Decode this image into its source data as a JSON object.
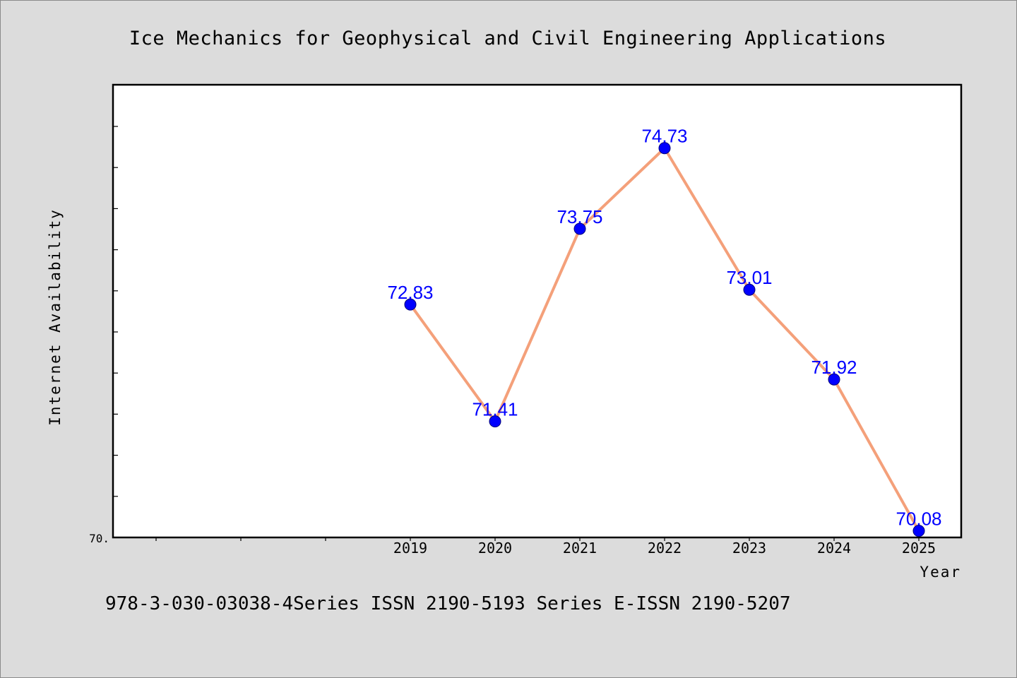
{
  "footer": "978-3-030-03038-4Series ISSN 2190-5193 Series E-ISSN 2190-5207",
  "colors": {
    "background": "#dcdcdc",
    "plot_background": "#ffffff",
    "line": "#f4a07a",
    "marker": "#0000ff",
    "data_label": "#0000ff"
  },
  "chart_data": {
    "type": "line",
    "title": "Ice Mechanics for Geophysical and Civil Engineering Applications",
    "xlabel": "Year",
    "ylabel": "Internet Availability",
    "categories": [
      "2019",
      "2020",
      "2021",
      "2022",
      "2023",
      "2024",
      "2025"
    ],
    "series": [
      {
        "values": [
          72.83,
          71.41,
          73.75,
          74.73,
          73.01,
          71.92,
          70.08
        ],
        "data_labels": [
          "72.83",
          "71.41",
          "73.75",
          "74.73",
          "73.01",
          "71.92",
          "70.08"
        ]
      }
    ],
    "ylim": [
      70.0,
      75.5
    ],
    "y_tick_labels": [
      "70."
    ],
    "grid": false,
    "legend": "none"
  }
}
